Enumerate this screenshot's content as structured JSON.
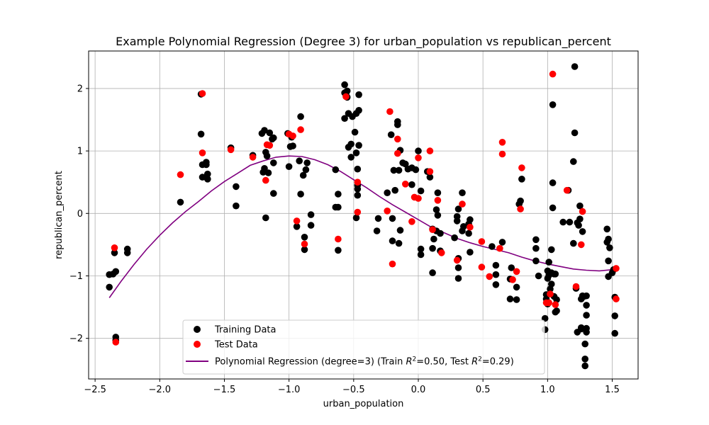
{
  "chart_data": {
    "type": "scatter",
    "title": "Example Polynomial Regression (Degree 3) for urban_population vs republican_percent",
    "xlabel": "urban_population",
    "ylabel": "republican_percent",
    "xlim": [
      -2.55,
      1.7
    ],
    "ylim": [
      -2.65,
      2.6
    ],
    "xticks": [
      -2.5,
      -2.0,
      -1.5,
      -1.0,
      -0.5,
      0.0,
      0.5,
      1.0,
      1.5
    ],
    "xtick_labels": [
      "−2.5",
      "−2.0",
      "−1.5",
      "−1.0",
      "−0.5",
      "0.0",
      "0.5",
      "1.0",
      "1.5"
    ],
    "yticks": [
      -2,
      -1,
      0,
      1,
      2
    ],
    "ytick_labels": [
      "−2",
      "−1",
      "0",
      "1",
      "2"
    ],
    "grid": true,
    "legend_position": "lower center",
    "series": [
      {
        "name": "Training Data",
        "kind": "scatter",
        "color": "#000000",
        "points": [
          [
            -2.39,
            -1.18
          ],
          [
            -2.39,
            -0.98
          ],
          [
            -2.36,
            -0.97
          ],
          [
            -2.35,
            -0.63
          ],
          [
            -2.34,
            -0.93
          ],
          [
            -2.34,
            -1.98
          ],
          [
            -2.34,
            -2.03
          ],
          [
            -2.25,
            -0.57
          ],
          [
            -2.25,
            -0.63
          ],
          [
            -1.84,
            0.18
          ],
          [
            -1.68,
            1.27
          ],
          [
            -1.68,
            1.91
          ],
          [
            -1.67,
            0.58
          ],
          [
            -1.67,
            0.78
          ],
          [
            -1.64,
            0.82
          ],
          [
            -1.64,
            0.78
          ],
          [
            -1.63,
            0.63
          ],
          [
            -1.63,
            0.55
          ],
          [
            -1.45,
            1.05
          ],
          [
            -1.41,
            0.43
          ],
          [
            -1.41,
            0.12
          ],
          [
            -1.28,
            0.93
          ],
          [
            -1.21,
            1.28
          ],
          [
            -1.2,
            0.66
          ],
          [
            -1.19,
            0.72
          ],
          [
            -1.19,
            1.33
          ],
          [
            -1.18,
            0.98
          ],
          [
            -1.18,
            -0.07
          ],
          [
            -1.17,
            0.92
          ],
          [
            -1.16,
            0.65
          ],
          [
            -1.15,
            1.29
          ],
          [
            -1.13,
            1.19
          ],
          [
            -1.12,
            0.32
          ],
          [
            -1.12,
            1.21
          ],
          [
            -1.12,
            0.81
          ],
          [
            -1.01,
            1.28
          ],
          [
            -1.0,
            0.75
          ],
          [
            -0.99,
            1.07
          ],
          [
            -0.98,
            1.22
          ],
          [
            -0.97,
            1.08
          ],
          [
            -0.94,
            -0.21
          ],
          [
            -0.92,
            0.84
          ],
          [
            -0.91,
            1.55
          ],
          [
            -0.91,
            0.31
          ],
          [
            -0.89,
            0.61
          ],
          [
            -0.88,
            -0.58
          ],
          [
            -0.88,
            -0.38
          ],
          [
            -0.87,
            0.7
          ],
          [
            -0.86,
            0.81
          ],
          [
            -0.83,
            -0.19
          ],
          [
            -0.83,
            -0.02
          ],
          [
            -0.64,
            0.7
          ],
          [
            -0.64,
            0.1
          ],
          [
            -0.62,
            0.31
          ],
          [
            -0.62,
            0.1
          ],
          [
            -0.62,
            -0.59
          ],
          [
            -0.57,
            2.06
          ],
          [
            -0.57,
            1.93
          ],
          [
            -0.57,
            1.52
          ],
          [
            -0.56,
            1.91
          ],
          [
            -0.55,
            1.86
          ],
          [
            -0.55,
            1.96
          ],
          [
            -0.54,
            1.6
          ],
          [
            -0.54,
            1.06
          ],
          [
            -0.52,
            1.11
          ],
          [
            -0.52,
            0.9
          ],
          [
            -0.51,
            1.55
          ],
          [
            -0.49,
            1.3
          ],
          [
            -0.48,
            1.6
          ],
          [
            -0.48,
            0.97
          ],
          [
            -0.47,
            0.71
          ],
          [
            -0.47,
            0.45
          ],
          [
            -0.47,
            0.29
          ],
          [
            -0.46,
            1.9
          ],
          [
            -0.46,
            1.65
          ],
          [
            -0.46,
            1.09
          ],
          [
            -0.48,
            -0.07
          ],
          [
            -0.47,
            0.39
          ],
          [
            -0.32,
            -0.28
          ],
          [
            -0.31,
            -0.08
          ],
          [
            -0.24,
            0.33
          ],
          [
            -0.21,
            1.26
          ],
          [
            -0.2,
            -0.44
          ],
          [
            -0.2,
            -0.08
          ],
          [
            -0.19,
            0.69
          ],
          [
            -0.18,
            0.37
          ],
          [
            -0.16,
            1.47
          ],
          [
            -0.16,
            1.42
          ],
          [
            -0.15,
            0.69
          ],
          [
            -0.15,
            -0.48
          ],
          [
            -0.14,
            -0.27
          ],
          [
            -0.14,
            1.01
          ],
          [
            -0.12,
            0.81
          ],
          [
            -0.1,
            0.79
          ],
          [
            -0.08,
            0.71
          ],
          [
            -0.05,
            0.46
          ],
          [
            -0.05,
            0.73
          ],
          [
            -0.02,
            0.7
          ],
          [
            0.0,
            1.0
          ],
          [
            0.02,
            0.36
          ],
          [
            0.02,
            -0.66
          ],
          [
            0.02,
            -0.57
          ],
          [
            0.07,
            0.67
          ],
          [
            0.09,
            0.58
          ],
          [
            0.11,
            -0.95
          ],
          [
            0.11,
            -0.56
          ],
          [
            0.11,
            -0.25
          ],
          [
            0.12,
            -0.41
          ],
          [
            0.14,
            -0.28
          ],
          [
            0.14,
            0.06
          ],
          [
            0.15,
            0.33
          ],
          [
            0.15,
            -0.03
          ],
          [
            0.17,
            -0.32
          ],
          [
            0.17,
            -0.6
          ],
          [
            0.28,
            -0.39
          ],
          [
            0.3,
            -0.12
          ],
          [
            0.3,
            -0.05
          ],
          [
            0.31,
            -0.72
          ],
          [
            0.31,
            -1.04
          ],
          [
            0.31,
            -0.87
          ],
          [
            0.31,
            0.07
          ],
          [
            0.34,
            -0.28
          ],
          [
            0.34,
            0.33
          ],
          [
            0.35,
            -0.21
          ],
          [
            0.39,
            -0.32
          ],
          [
            0.39,
            -0.17
          ],
          [
            0.4,
            -0.62
          ],
          [
            0.4,
            -0.1
          ],
          [
            0.57,
            -0.53
          ],
          [
            0.6,
            -1.14
          ],
          [
            0.6,
            -0.98
          ],
          [
            0.6,
            -0.83
          ],
          [
            0.65,
            -0.46
          ],
          [
            0.71,
            -1.37
          ],
          [
            0.71,
            -1.05
          ],
          [
            0.72,
            -0.87
          ],
          [
            0.76,
            -1.38
          ],
          [
            0.76,
            -1.18
          ],
          [
            0.78,
            0.15
          ],
          [
            0.79,
            0.2
          ],
          [
            0.8,
            0.55
          ],
          [
            0.91,
            -0.76
          ],
          [
            0.91,
            -0.56
          ],
          [
            0.91,
            -0.42
          ],
          [
            0.93,
            -1.0
          ],
          [
            0.98,
            -1.68
          ],
          [
            0.98,
            -1.86
          ],
          [
            0.99,
            -1.3
          ],
          [
            0.99,
            -1.37
          ],
          [
            1.0,
            -1.45
          ],
          [
            1.0,
            -0.92
          ],
          [
            1.0,
            -1.04
          ],
          [
            1.01,
            -0.99
          ],
          [
            1.01,
            -0.78
          ],
          [
            1.02,
            -1.21
          ],
          [
            1.03,
            -0.95
          ],
          [
            1.03,
            -1.13
          ],
          [
            1.03,
            -0.58
          ],
          [
            1.04,
            1.74
          ],
          [
            1.04,
            0.49
          ],
          [
            1.04,
            0.09
          ],
          [
            1.05,
            -0.97
          ],
          [
            1.05,
            -1.33
          ],
          [
            1.06,
            -0.97
          ],
          [
            1.06,
            -1.58
          ],
          [
            1.07,
            -1.38
          ],
          [
            1.07,
            -1.56
          ],
          [
            1.12,
            -0.14
          ],
          [
            1.16,
            0.37
          ],
          [
            1.17,
            -0.14
          ],
          [
            1.2,
            -0.48
          ],
          [
            1.2,
            0.83
          ],
          [
            1.21,
            1.29
          ],
          [
            1.21,
            2.35
          ],
          [
            1.22,
            -1.2
          ],
          [
            1.23,
            -1.9
          ],
          [
            1.23,
            -0.15
          ],
          [
            1.24,
            -0.19
          ],
          [
            1.25,
            -0.09
          ],
          [
            1.25,
            0.12
          ],
          [
            1.26,
            -1.83
          ],
          [
            1.26,
            -1.85
          ],
          [
            1.26,
            -1.37
          ],
          [
            1.27,
            -1.32
          ],
          [
            1.27,
            -0.29
          ],
          [
            1.28,
            -1.33
          ],
          [
            1.29,
            -2.33
          ],
          [
            1.29,
            -2.44
          ],
          [
            1.29,
            -2.09
          ],
          [
            1.3,
            -1.84
          ],
          [
            1.3,
            -1.63
          ],
          [
            1.3,
            -1.9
          ],
          [
            1.3,
            -1.47
          ],
          [
            1.3,
            -1.32
          ],
          [
            1.46,
            -0.46
          ],
          [
            1.46,
            -0.25
          ],
          [
            1.47,
            -0.41
          ],
          [
            1.47,
            -0.76
          ],
          [
            1.47,
            -1.01
          ],
          [
            1.48,
            -0.55
          ],
          [
            1.5,
            -0.95
          ],
          [
            1.51,
            -0.9
          ],
          [
            1.52,
            -1.34
          ],
          [
            1.52,
            -1.64
          ],
          [
            1.52,
            -1.92
          ]
        ]
      },
      {
        "name": "Test Data",
        "kind": "scatter",
        "color": "#ff0000",
        "points": [
          [
            -2.35,
            -0.55
          ],
          [
            -2.34,
            -2.06
          ],
          [
            -1.84,
            0.62
          ],
          [
            -1.67,
            1.92
          ],
          [
            -1.67,
            0.97
          ],
          [
            -1.45,
            1.02
          ],
          [
            -1.28,
            0.9
          ],
          [
            -1.18,
            0.53
          ],
          [
            -1.17,
            1.1
          ],
          [
            -1.15,
            1.09
          ],
          [
            -1.0,
            1.27
          ],
          [
            -0.97,
            1.24
          ],
          [
            -0.94,
            -0.12
          ],
          [
            -0.91,
            1.34
          ],
          [
            -0.88,
            -0.49
          ],
          [
            -0.62,
            -0.41
          ],
          [
            -0.56,
            1.87
          ],
          [
            -0.47,
            0.02
          ],
          [
            -0.47,
            0.5
          ],
          [
            -0.24,
            0.04
          ],
          [
            -0.22,
            1.63
          ],
          [
            -0.2,
            -0.81
          ],
          [
            -0.16,
            0.96
          ],
          [
            -0.16,
            1.19
          ],
          [
            -0.1,
            0.47
          ],
          [
            -0.05,
            -0.13
          ],
          [
            -0.03,
            0.26
          ],
          [
            0.0,
            0.89
          ],
          [
            0.0,
            0.24
          ],
          [
            0.09,
            1.0
          ],
          [
            0.09,
            0.67
          ],
          [
            0.11,
            -0.26
          ],
          [
            0.15,
            0.21
          ],
          [
            0.18,
            -0.63
          ],
          [
            0.3,
            -0.75
          ],
          [
            0.34,
            0.15
          ],
          [
            0.4,
            -0.22
          ],
          [
            0.49,
            -0.45
          ],
          [
            0.49,
            -0.86
          ],
          [
            0.55,
            -1.01
          ],
          [
            0.63,
            -0.56
          ],
          [
            0.65,
            1.14
          ],
          [
            0.65,
            0.95
          ],
          [
            0.73,
            -1.06
          ],
          [
            0.76,
            -0.93
          ],
          [
            0.79,
            0.07
          ],
          [
            0.8,
            0.73
          ],
          [
            0.99,
            -1.43
          ],
          [
            1.01,
            -1.43
          ],
          [
            1.02,
            -1.29
          ],
          [
            1.04,
            2.23
          ],
          [
            1.06,
            -1.46
          ],
          [
            1.15,
            0.37
          ],
          [
            1.22,
            -1.17
          ],
          [
            1.26,
            -0.5
          ],
          [
            1.27,
            0.03
          ],
          [
            1.53,
            -1.37
          ],
          [
            1.53,
            -0.88
          ]
        ]
      },
      {
        "name": "Polynomial Regression (degree=3) (Train R²=0.50, Test R²=0.29)",
        "kind": "line",
        "color": "#800080",
        "points": [
          [
            -2.39,
            -1.35
          ],
          [
            -2.3,
            -1.09
          ],
          [
            -2.2,
            -0.82
          ],
          [
            -2.1,
            -0.57
          ],
          [
            -2.0,
            -0.35
          ],
          [
            -1.9,
            -0.15
          ],
          [
            -1.8,
            0.03
          ],
          [
            -1.7,
            0.19
          ],
          [
            -1.6,
            0.36
          ],
          [
            -1.5,
            0.51
          ],
          [
            -1.4,
            0.64
          ],
          [
            -1.3,
            0.77
          ],
          [
            -1.2,
            0.84
          ],
          [
            -1.1,
            0.9
          ],
          [
            -1.0,
            0.92
          ],
          [
            -0.9,
            0.91
          ],
          [
            -0.8,
            0.86
          ],
          [
            -0.7,
            0.78
          ],
          [
            -0.6,
            0.67
          ],
          [
            -0.5,
            0.54
          ],
          [
            -0.4,
            0.41
          ],
          [
            -0.3,
            0.27
          ],
          [
            -0.2,
            0.14
          ],
          [
            -0.1,
            0.02
          ],
          [
            0.0,
            -0.1
          ],
          [
            0.1,
            -0.22
          ],
          [
            0.2,
            -0.31
          ],
          [
            0.3,
            -0.4
          ],
          [
            0.4,
            -0.47
          ],
          [
            0.5,
            -0.53
          ],
          [
            0.6,
            -0.58
          ],
          [
            0.7,
            -0.63
          ],
          [
            0.8,
            -0.7
          ],
          [
            0.9,
            -0.76
          ],
          [
            1.0,
            -0.81
          ],
          [
            1.1,
            -0.85
          ],
          [
            1.2,
            -0.89
          ],
          [
            1.3,
            -0.91
          ],
          [
            1.4,
            -0.92
          ],
          [
            1.5,
            -0.9
          ]
        ]
      }
    ]
  },
  "legend": {
    "training_label": "Training Data",
    "test_label": "Test Data",
    "line_label_prefix": "Polynomial Regression (degree=3) (Train ",
    "train_r2": "=0.50, Test ",
    "test_r2": "=0.29)"
  }
}
